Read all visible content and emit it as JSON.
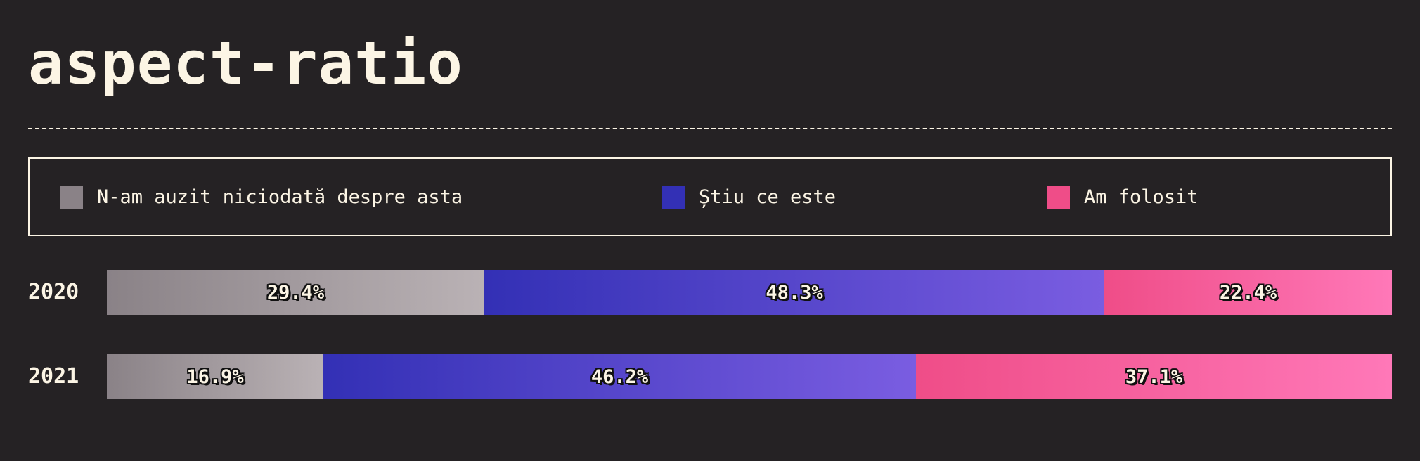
{
  "title": "aspect-ratio",
  "colors": {
    "background": "#252224",
    "text": "#fcf5e5",
    "never_heard": [
      "#8a8287",
      "#bab2b5"
    ],
    "know_what": [
      "#3330b5",
      "#7a5de1"
    ],
    "used": [
      "#ef4d88",
      "#ff78b8"
    ]
  },
  "chart_data": {
    "type": "bar",
    "orientation": "horizontal",
    "stacked": true,
    "normalized": true,
    "title": "aspect-ratio",
    "categories": [
      "2020",
      "2021"
    ],
    "series": [
      {
        "name": "N-am auzit niciodată despre asta",
        "values": [
          29.4,
          16.9
        ]
      },
      {
        "name": "Știu ce este",
        "values": [
          48.3,
          46.2
        ]
      },
      {
        "name": "Am folosit",
        "values": [
          22.4,
          37.1
        ]
      }
    ],
    "value_suffix": "%",
    "legend_position": "top",
    "grid": false
  }
}
